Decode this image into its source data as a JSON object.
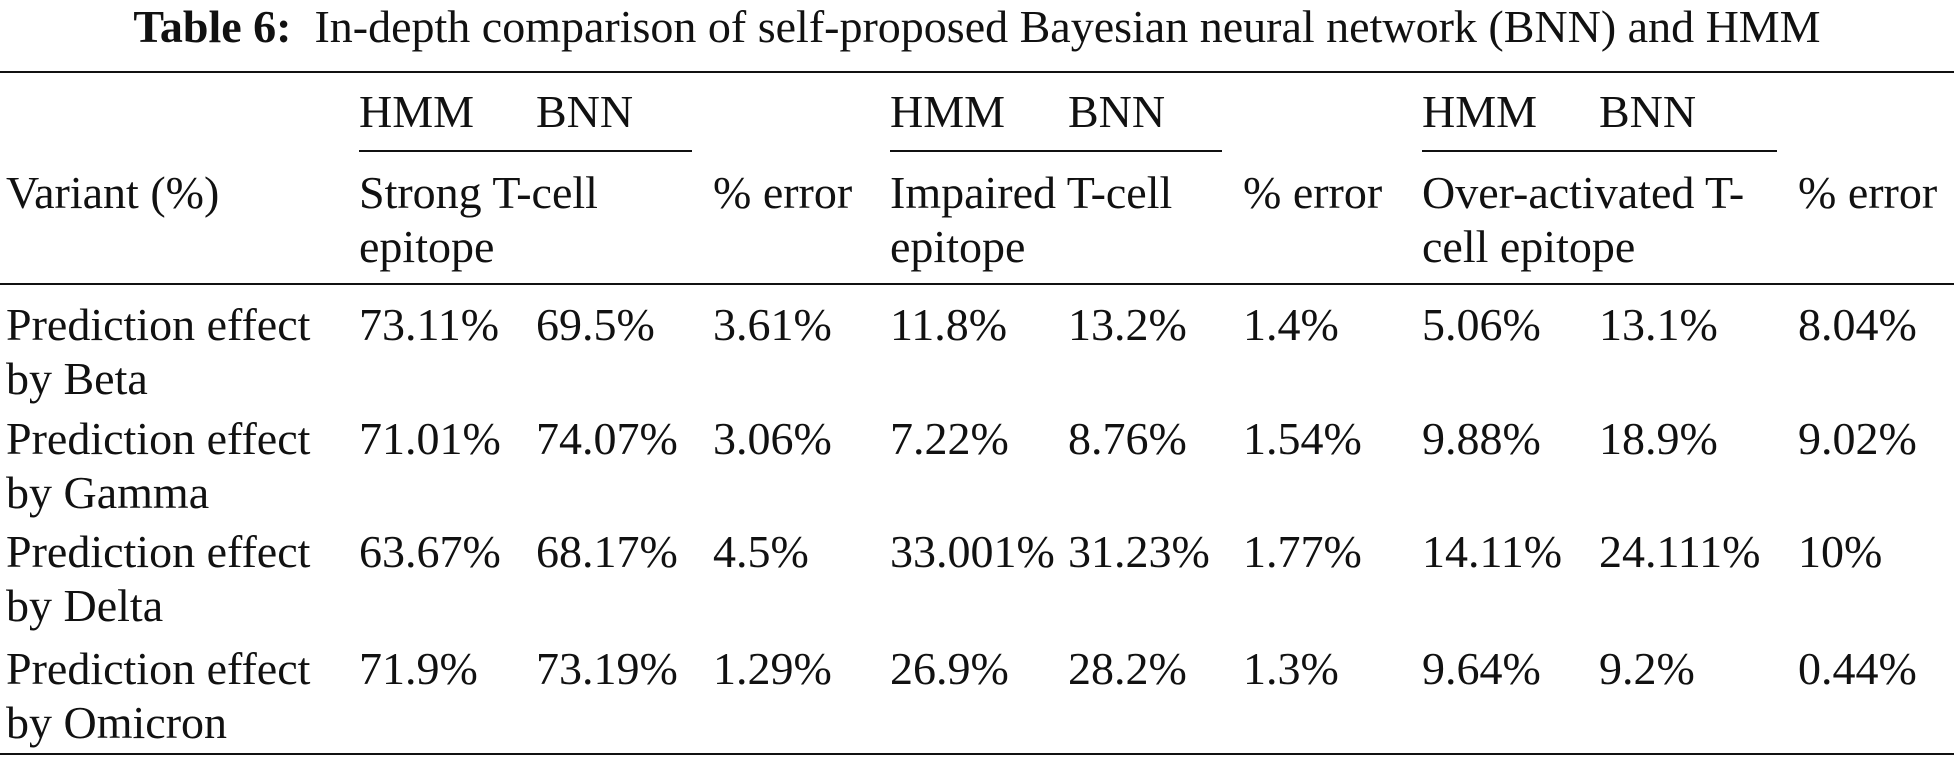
{
  "caption": {
    "label": "Table 6:",
    "text": "In-depth comparison of self-proposed Bayesian neural network (BNN) and HMM"
  },
  "table": {
    "header": {
      "row_label": "Variant (%)",
      "groups": [
        {
          "models": [
            "HMM",
            "BNN"
          ],
          "name": "Strong T-cell epitope",
          "error": "% error"
        },
        {
          "models": [
            "HMM",
            "BNN"
          ],
          "name": "Impaired T-cell epitope",
          "error": "% error"
        },
        {
          "models": [
            "HMM",
            "BNN"
          ],
          "name": "Over-activated T-cell epitope",
          "error": "% error"
        }
      ]
    },
    "rows": [
      {
        "label": "Prediction effect by Beta",
        "cells": [
          "73.11%",
          "69.5%",
          "3.61%",
          "11.8%",
          "13.2%",
          "1.4%",
          "5.06%",
          "13.1%",
          "8.04%"
        ]
      },
      {
        "label": "Prediction effect by Gamma",
        "cells": [
          "71.01%",
          "74.07%",
          "3.06%",
          "7.22%",
          "8.76%",
          "1.54%",
          "9.88%",
          "18.9%",
          "9.02%"
        ]
      },
      {
        "label": "Prediction effect by Delta",
        "cells": [
          "63.67%",
          "68.17%",
          "4.5%",
          "33.001%",
          "31.23%",
          "1.77%",
          "14.11%",
          "24.111%",
          "10%"
        ]
      },
      {
        "label": "Prediction effect by Omicron",
        "cells": [
          "71.9%",
          "73.19%",
          "1.29%",
          "26.9%",
          "28.2%",
          "1.3%",
          "9.64%",
          "9.2%",
          "0.44%"
        ]
      }
    ]
  }
}
